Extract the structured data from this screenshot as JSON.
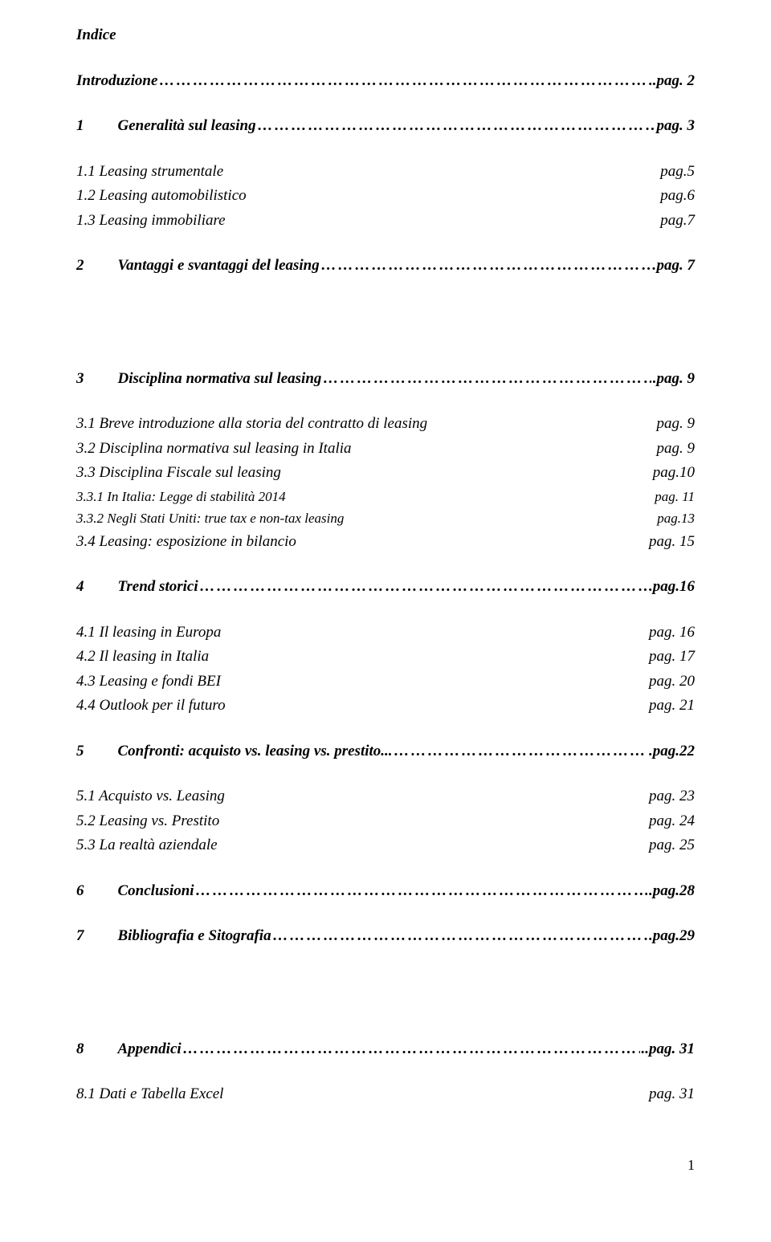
{
  "title": "Indice",
  "intro": {
    "label": "Introduzione",
    "page": "..pag. 2"
  },
  "ch1": {
    "num": "1",
    "label": "Generalità sul leasing",
    "page": "pag. 3",
    "subs": [
      {
        "label": "1.1 Leasing strumentale",
        "page": "pag.5"
      },
      {
        "label": "1.2 Leasing automobilistico",
        "page": "pag.6"
      },
      {
        "label": "1.3 Leasing immobiliare",
        "page": "pag.7"
      }
    ]
  },
  "ch2": {
    "num": "2",
    "label": "Vantaggi e svantaggi del leasing",
    "page": "pag. 7"
  },
  "ch3": {
    "num": "3",
    "label": "Disciplina normativa sul leasing",
    "page": ".pag. 9",
    "subs": [
      {
        "label": "3.1 Breve introduzione alla storia del contratto di leasing",
        "page": "pag. 9"
      },
      {
        "label": "3.2 Disciplina normativa sul leasing in Italia",
        "page": "pag. 9"
      },
      {
        "label": "3.3 Disciplina Fiscale sul leasing",
        "page": "pag.10"
      },
      {
        "label": "3.3.1 In Italia: Legge di stabilità 2014",
        "page": "pag. 11"
      },
      {
        "label": "3.3.2 Negli Stati Uniti: true tax e non-tax leasing",
        "page": "pag.13"
      },
      {
        "label": "3.4 Leasing: esposizione in bilancio",
        "page": "pag. 15"
      }
    ]
  },
  "ch4": {
    "num": "4",
    "label": "Trend storici",
    "page": ".pag.16",
    "subs": [
      {
        "label": "4.1 Il leasing in Europa",
        "page": "pag. 16"
      },
      {
        "label": "4.2 Il leasing in Italia",
        "page": "pag. 17"
      },
      {
        "label": "4.3 Leasing e fondi BEI",
        "page": "pag. 20"
      },
      {
        "label": "4.4 Outlook per il futuro",
        "page": "pag. 21"
      }
    ]
  },
  "ch5": {
    "num": "5",
    "label": "Confronti: acquisto vs. leasing vs. prestito...",
    "page": ".pag.22",
    "subs": [
      {
        "label": "5.1 Acquisto vs. Leasing",
        "page": "pag. 23"
      },
      {
        "label": "5.2 Leasing vs. Prestito",
        "page": "pag. 24"
      },
      {
        "label": "5.3 La realtà aziendale",
        "page": "pag. 25"
      }
    ]
  },
  "ch6": {
    "num": "6",
    "label": "Conclusioni",
    "page": ".pag.28"
  },
  "ch7": {
    "num": "7",
    "label": "Bibliografia e Sitografia",
    "page": ".pag.29"
  },
  "ch8": {
    "num": "8",
    "label": "Appendici",
    "page": "..pag. 31",
    "subs": [
      {
        "label": "8.1 Dati e Tabella Excel",
        "page": "pag. 31"
      }
    ]
  },
  "footer": "1"
}
